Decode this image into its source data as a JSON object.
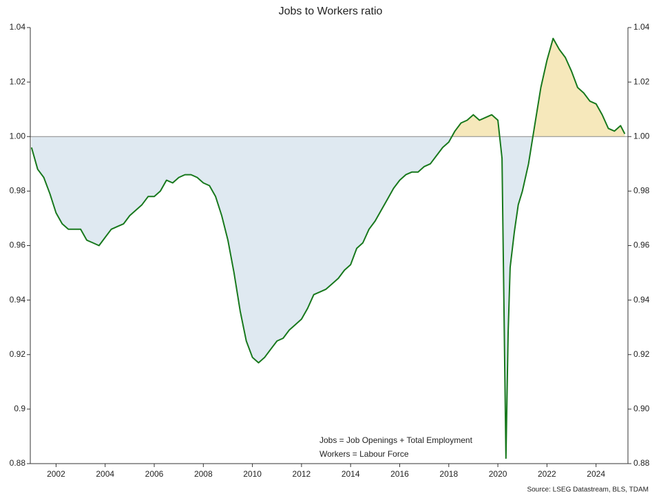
{
  "chart_data": {
    "type": "line",
    "title": "Jobs to Workers ratio",
    "x": [
      2001.0,
      2001.25,
      2001.5,
      2001.75,
      2002.0,
      2002.25,
      2002.5,
      2002.75,
      2003.0,
      2003.25,
      2003.5,
      2003.75,
      2004.0,
      2004.25,
      2004.5,
      2004.75,
      2005.0,
      2005.25,
      2005.5,
      2005.75,
      2006.0,
      2006.25,
      2006.5,
      2006.75,
      2007.0,
      2007.25,
      2007.5,
      2007.75,
      2008.0,
      2008.25,
      2008.5,
      2008.75,
      2009.0,
      2009.25,
      2009.5,
      2009.75,
      2010.0,
      2010.25,
      2010.5,
      2010.75,
      2011.0,
      2011.25,
      2011.5,
      2011.75,
      2012.0,
      2012.25,
      2012.5,
      2012.75,
      2013.0,
      2013.25,
      2013.5,
      2013.75,
      2014.0,
      2014.25,
      2014.5,
      2014.75,
      2015.0,
      2015.25,
      2015.5,
      2015.75,
      2016.0,
      2016.25,
      2016.5,
      2016.75,
      2017.0,
      2017.25,
      2017.5,
      2017.75,
      2018.0,
      2018.25,
      2018.5,
      2018.75,
      2019.0,
      2019.25,
      2019.5,
      2019.75,
      2020.0,
      2020.17,
      2020.33,
      2020.42,
      2020.5,
      2020.67,
      2020.83,
      2021.0,
      2021.25,
      2021.5,
      2021.75,
      2022.0,
      2022.25,
      2022.5,
      2022.75,
      2023.0,
      2023.25,
      2023.5,
      2023.75,
      2024.0,
      2024.25,
      2024.5,
      2024.75,
      2025.0,
      2025.17
    ],
    "series": [
      {
        "color": "#17781c",
        "values": [
          0.996,
          0.988,
          0.985,
          0.979,
          0.972,
          0.968,
          0.966,
          0.966,
          0.966,
          0.962,
          0.961,
          0.96,
          0.963,
          0.966,
          0.967,
          0.968,
          0.971,
          0.973,
          0.975,
          0.978,
          0.978,
          0.98,
          0.984,
          0.983,
          0.985,
          0.986,
          0.986,
          0.985,
          0.983,
          0.982,
          0.978,
          0.971,
          0.962,
          0.95,
          0.936,
          0.925,
          0.919,
          0.917,
          0.919,
          0.922,
          0.925,
          0.926,
          0.929,
          0.931,
          0.933,
          0.937,
          0.942,
          0.943,
          0.944,
          0.946,
          0.948,
          0.951,
          0.953,
          0.959,
          0.961,
          0.966,
          0.969,
          0.973,
          0.977,
          0.981,
          0.984,
          0.986,
          0.987,
          0.987,
          0.989,
          0.99,
          0.993,
          0.996,
          0.998,
          1.002,
          1.005,
          1.006,
          1.008,
          1.006,
          1.007,
          1.008,
          1.006,
          0.992,
          0.882,
          0.928,
          0.952,
          0.965,
          0.975,
          0.98,
          0.99,
          1.004,
          1.018,
          1.028,
          1.036,
          1.032,
          1.029,
          1.024,
          1.018,
          1.016,
          1.013,
          1.012,
          1.008,
          1.003,
          1.002,
          1.004,
          1.001
        ]
      }
    ],
    "xlim": [
      2000.95,
      2025.3
    ],
    "xticks": [
      2002,
      2004,
      2006,
      2008,
      2010,
      2012,
      2014,
      2016,
      2018,
      2020,
      2022,
      2024
    ],
    "ylim": [
      0.88,
      1.04
    ],
    "yticks": [
      0.88,
      0.9,
      0.92,
      0.94,
      0.96,
      0.98,
      {
        "value": 1,
        "label": "1.00"
      },
      1.02,
      1.04
    ],
    "y2lim": [
      0.88,
      1.04
    ],
    "y2ticks": [
      0.88,
      {
        "value": 0.9,
        "label": "0.90"
      },
      0.92,
      0.94,
      0.96,
      0.98,
      {
        "value": 1,
        "label": "1.00"
      },
      1.02,
      1.04
    ],
    "reference_line": 1,
    "fill_above_color": "#f6e8bb",
    "fill_below_color": "#dfe9f1",
    "annotations": [
      "Jobs = Job Openings + Total Employment",
      "Workers = Labour Force"
    ],
    "source": "Source: LSEG Datastream, BLS, TDAM"
  }
}
